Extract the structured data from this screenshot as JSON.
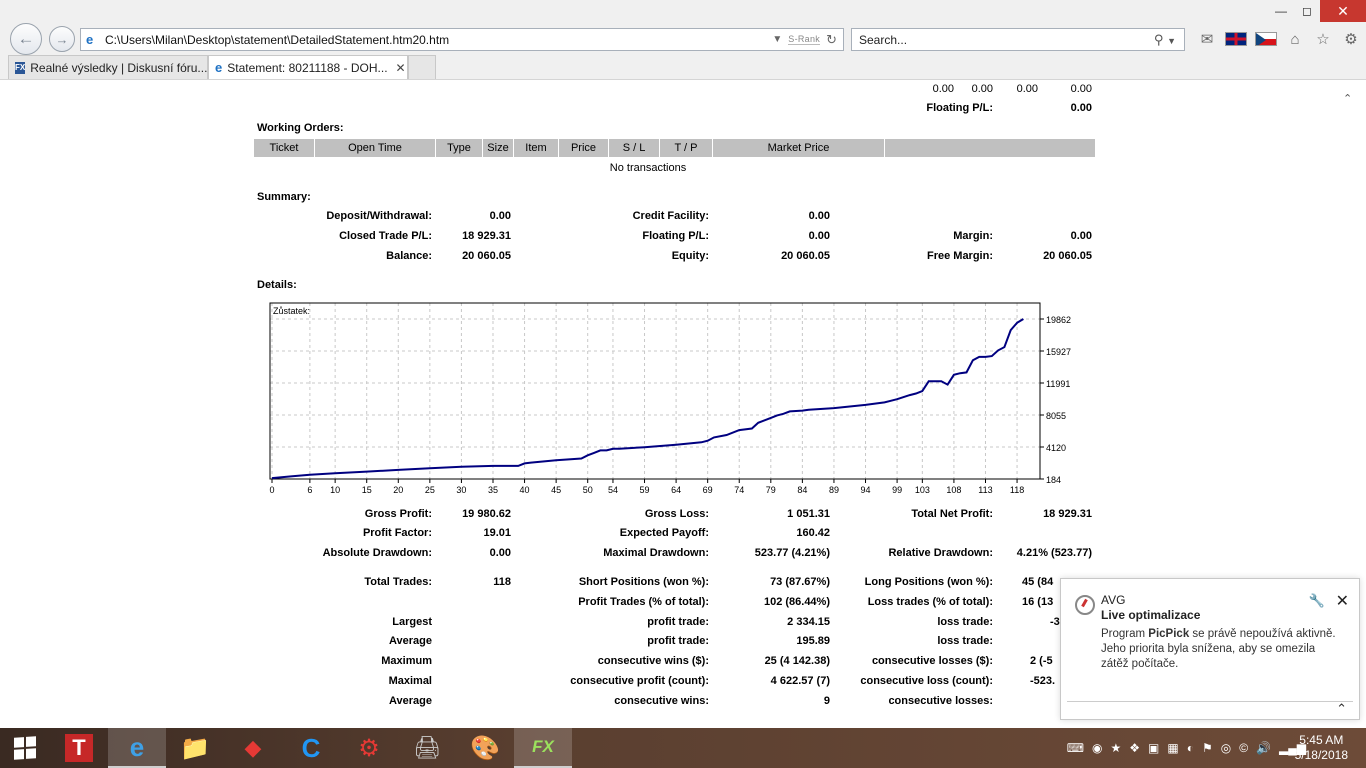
{
  "browser": {
    "url": "C:\\Users\\Milan\\Desktop\\statement\\DetailedStatement.htm20.htm",
    "srank": "S-Rank",
    "search_placeholder": "Search...",
    "tabs": [
      {
        "label": "Realné výsledky | Diskusní fóru...",
        "icon": "fx-favicon"
      },
      {
        "label": "Statement: 80211188 - DOH...",
        "icon": "ie-favicon"
      }
    ]
  },
  "page": {
    "top_values": [
      "0.00",
      "0.00",
      "0.00",
      "0.00"
    ],
    "floating_label": "Floating P/L:",
    "floating_value": "0.00",
    "working_orders_title": "Working Orders:",
    "working_orders_columns": [
      "Ticket",
      "Open Time",
      "Type",
      "Size",
      "Item",
      "Price",
      "S / L",
      "T / P",
      "Market Price",
      ""
    ],
    "no_transactions": "No transactions",
    "summary_title": "Summary:",
    "summary": {
      "deposit_label": "Deposit/Withdrawal:",
      "deposit_value": "0.00",
      "credit_label": "Credit Facility:",
      "credit_value": "0.00",
      "closed_label": "Closed Trade P/L:",
      "closed_value": "18 929.31",
      "floating_label": "Floating P/L:",
      "floating_value": "0.00",
      "margin_label": "Margin:",
      "margin_value": "0.00",
      "balance_label": "Balance:",
      "balance_value": "20 060.05",
      "equity_label": "Equity:",
      "equity_value": "20 060.05",
      "free_margin_label": "Free Margin:",
      "free_margin_value": "20 060.05"
    },
    "details_title": "Details:",
    "stats": {
      "gross_profit_label": "Gross Profit:",
      "gross_profit_value": "19 980.62",
      "gross_loss_label": "Gross Loss:",
      "gross_loss_value": "1 051.31",
      "total_net_label": "Total Net Profit:",
      "total_net_value": "18 929.31",
      "profit_factor_label": "Profit Factor:",
      "profit_factor_value": "19.01",
      "expected_payoff_label": "Expected Payoff:",
      "expected_payoff_value": "160.42",
      "abs_dd_label": "Absolute Drawdown:",
      "abs_dd_value": "0.00",
      "max_dd_label": "Maximal Drawdown:",
      "max_dd_value": "523.77 (4.21%)",
      "rel_dd_label": "Relative Drawdown:",
      "rel_dd_value": "4.21% (523.77)",
      "total_trades_label": "Total Trades:",
      "total_trades_value": "118",
      "short_label": "Short Positions (won %):",
      "short_value": "73 (87.67%)",
      "long_label": "Long Positions (won %):",
      "long_value": "45 (84",
      "profit_trades_label": "Profit Trades (% of total):",
      "profit_trades_value": "102 (86.44%)",
      "loss_trades_label": "Loss trades (% of total):",
      "loss_trades_value": "16 (13",
      "largest_label": "Largest",
      "largest_profit_label": "profit trade:",
      "largest_profit_value": "2 334.15",
      "largest_loss_label": "loss trade:",
      "largest_loss_value": "-3",
      "average_label": "Average",
      "average_profit_label": "profit trade:",
      "average_profit_value": "195.89",
      "average_loss_label": "loss trade:",
      "average_loss_value": "",
      "maximum_label": "Maximum",
      "max_wins_label": "consecutive wins ($):",
      "max_wins_value": "25 (4 142.38)",
      "max_losses_label": "consecutive losses ($):",
      "max_losses_value": "2 (-5",
      "maximal_label": "Maximal",
      "maximal_profit_label": "consecutive profit (count):",
      "maximal_profit_value": "4 622.57 (7)",
      "maximal_loss_label": "consecutive loss (count):",
      "maximal_loss_value": "-523.",
      "avg2_label": "Average",
      "avg_wins_label": "consecutive wins:",
      "avg_wins_value": "9",
      "avg_losses_label": "consecutive losses:",
      "avg_losses_value": ""
    }
  },
  "chart_data": {
    "type": "line",
    "title": "Zůstatek:",
    "x_ticks": [
      "0",
      "6",
      "10",
      "15",
      "20",
      "25",
      "30",
      "35",
      "40",
      "45",
      "50",
      "54",
      "59",
      "64",
      "69",
      "74",
      "79",
      "84",
      "89",
      "94",
      "99",
      "103",
      "108",
      "113",
      "118"
    ],
    "y_ticks": [
      "19862",
      "15927",
      "11991",
      "8055",
      "4120",
      "184"
    ],
    "ylim": [
      184,
      19862
    ],
    "xlim": [
      0,
      121
    ],
    "grid": true,
    "series": [
      {
        "color": "#000080",
        "x": [
          0,
          3,
          6,
          10,
          15,
          20,
          25,
          30,
          35,
          39,
          40,
          41,
          45,
          49,
          50,
          51,
          52,
          53,
          54,
          55,
          59,
          64,
          68,
          69,
          70,
          72,
          74,
          76,
          77,
          79,
          80,
          81,
          82,
          84,
          85,
          89,
          94,
          97,
          99,
          101,
          102,
          103,
          104,
          106,
          107,
          108,
          109,
          110,
          111,
          112,
          113,
          114,
          115,
          116,
          117,
          118,
          119
        ],
        "y": [
          300,
          500,
          700,
          900,
          1100,
          1300,
          1500,
          1700,
          1800,
          1800,
          2100,
          2200,
          2500,
          2700,
          3100,
          3400,
          3700,
          3700,
          3900,
          3900,
          4100,
          4400,
          4700,
          4900,
          5300,
          5600,
          6200,
          6400,
          7100,
          7700,
          8000,
          8200,
          8500,
          8600,
          8700,
          8900,
          9300,
          9600,
          10000,
          10500,
          10700,
          11000,
          12200,
          12200,
          11800,
          13000,
          13200,
          13300,
          14800,
          15200,
          15200,
          15300,
          16000,
          16400,
          18500,
          19400,
          19862
        ]
      }
    ]
  },
  "avg_popup": {
    "title": "AVG",
    "subtitle": "Live optimalizace",
    "message_pre": "Program ",
    "message_bold": "PicPick",
    "message_post": " se právě nepoužívá aktivně. Jeho priorita byla snížena, aby se omezila zátěž počítače."
  },
  "taskbar": {
    "time": "5:45 AM",
    "date": "5/18/2018"
  }
}
